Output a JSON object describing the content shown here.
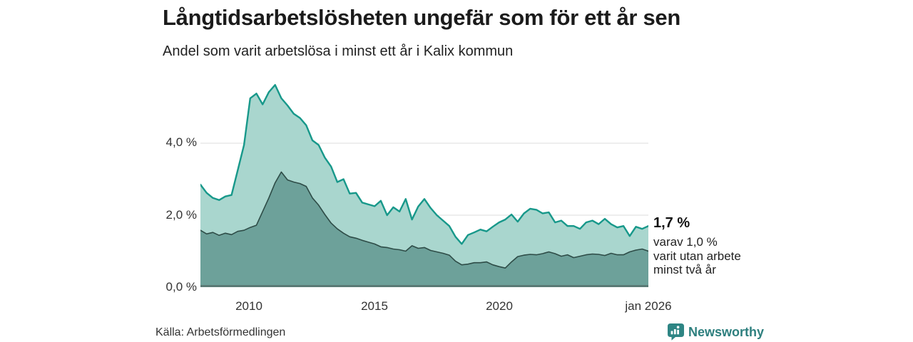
{
  "header": {
    "title": "Långtidsarbetslösheten ungefär som för ett år sen",
    "subtitle": "Andel som varit arbetslösa i minst ett år i Kalix kommun"
  },
  "theme": {
    "background": "#ffffff",
    "grid_color": "#dcdcdc",
    "axis_line_color": "#5a7a75",
    "brand_teal": "#2e8584"
  },
  "chart_data": {
    "type": "area",
    "title": "Långtidsarbetslösheten ungefär som för ett år sen",
    "subtitle": "Andel som varit arbetslösa i minst ett år i Kalix kommun",
    "unit": "%",
    "grid": "horizontal",
    "x_axis": {
      "range": [
        2008,
        2026
      ],
      "ticks": [
        {
          "label": "2010",
          "year": 2010
        },
        {
          "label": "2015",
          "year": 2015
        },
        {
          "label": "2020",
          "year": 2020
        },
        {
          "label": "jan 2026",
          "year": 2026
        }
      ]
    },
    "y_axis": {
      "range": [
        0,
        5.9
      ],
      "ticks": [
        {
          "label": "4,0 %",
          "value": 4
        },
        {
          "label": "2,0 %",
          "value": 2
        },
        {
          "label": "0,0 %",
          "value": 0
        }
      ]
    },
    "x": [
      2008,
      2008.25,
      2008.5,
      2008.75,
      2009,
      2009.25,
      2009.5,
      2009.75,
      2010,
      2010.25,
      2010.5,
      2010.75,
      2011,
      2011.25,
      2011.5,
      2011.75,
      2012,
      2012.25,
      2012.5,
      2012.75,
      2013,
      2013.25,
      2013.5,
      2013.75,
      2014,
      2014.25,
      2014.5,
      2014.75,
      2015,
      2015.25,
      2015.5,
      2015.75,
      2016,
      2016.25,
      2016.5,
      2016.75,
      2017,
      2017.25,
      2017.5,
      2017.75,
      2018,
      2018.25,
      2018.5,
      2018.75,
      2019,
      2019.25,
      2019.5,
      2019.75,
      2020,
      2020.25,
      2020.5,
      2020.75,
      2021,
      2021.25,
      2021.5,
      2021.75,
      2022,
      2022.25,
      2022.5,
      2022.75,
      2023,
      2023.25,
      2023.5,
      2023.75,
      2024,
      2024.25,
      2024.5,
      2024.75,
      2025,
      2025.25,
      2025.5,
      2025.75,
      2026
    ],
    "series": [
      {
        "name": "Arbetslösa minst ett år",
        "line_color": "#17988a",
        "fill_color": "#a9d6ce",
        "line_width": 2.4,
        "end_value_label": "1,7 %",
        "values": [
          2.85,
          2.62,
          2.48,
          2.42,
          2.52,
          2.56,
          3.25,
          3.95,
          5.25,
          5.38,
          5.08,
          5.42,
          5.62,
          5.25,
          5.05,
          4.82,
          4.7,
          4.5,
          4.08,
          3.95,
          3.6,
          3.35,
          2.92,
          3.0,
          2.6,
          2.62,
          2.35,
          2.3,
          2.25,
          2.4,
          2.0,
          2.22,
          2.1,
          2.45,
          1.88,
          2.24,
          2.45,
          2.2,
          2.0,
          1.85,
          1.7,
          1.4,
          1.2,
          1.45,
          1.52,
          1.6,
          1.55,
          1.68,
          1.8,
          1.88,
          2.02,
          1.82,
          2.05,
          2.18,
          2.15,
          2.05,
          2.08,
          1.8,
          1.85,
          1.7,
          1.7,
          1.62,
          1.8,
          1.85,
          1.75,
          1.9,
          1.75,
          1.66,
          1.7,
          1.42,
          1.68,
          1.62,
          1.7
        ]
      },
      {
        "name": "Utan arbete minst två år",
        "line_color": "#2e4c47",
        "fill_color": "#6da19a",
        "line_width": 1.6,
        "end_value_label": "1,0 %",
        "values": [
          1.58,
          1.48,
          1.52,
          1.44,
          1.5,
          1.46,
          1.55,
          1.58,
          1.66,
          1.72,
          2.1,
          2.48,
          2.9,
          3.2,
          2.98,
          2.92,
          2.88,
          2.8,
          2.48,
          2.28,
          2.02,
          1.78,
          1.62,
          1.5,
          1.4,
          1.36,
          1.3,
          1.25,
          1.2,
          1.12,
          1.1,
          1.06,
          1.04,
          1.0,
          1.15,
          1.08,
          1.1,
          1.02,
          0.98,
          0.94,
          0.89,
          0.72,
          0.62,
          0.64,
          0.68,
          0.68,
          0.7,
          0.62,
          0.57,
          0.53,
          0.7,
          0.85,
          0.89,
          0.91,
          0.9,
          0.93,
          0.98,
          0.93,
          0.86,
          0.9,
          0.82,
          0.86,
          0.9,
          0.92,
          0.91,
          0.88,
          0.94,
          0.9,
          0.9,
          0.98,
          1.03,
          1.06,
          1.0
        ]
      }
    ],
    "annotation": {
      "headline": "1,7 %",
      "lines": [
        "varav 1,0 %",
        "varit utan arbete",
        "minst två år"
      ]
    }
  },
  "footer": {
    "source": "Källa: Arbetsförmedlingen",
    "brand": "Newsworthy"
  }
}
